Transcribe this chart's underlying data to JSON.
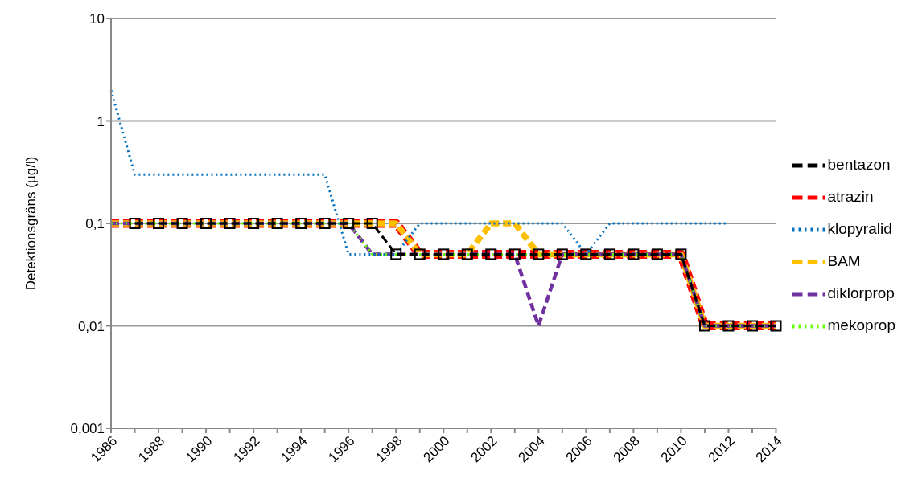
{
  "chart_data": {
    "type": "line",
    "ylabel": "Detektionsgräns (µg/l)",
    "categories": [
      "1986",
      null,
      "1988",
      null,
      "1990",
      null,
      "1992",
      null,
      "1994",
      null,
      "1996",
      null,
      "1998",
      null,
      "2000",
      null,
      "2002",
      null,
      "2004",
      null,
      "2006",
      null,
      "2008",
      null,
      "2010",
      null,
      "2012",
      null,
      "2014"
    ],
    "log": "y",
    "ylim": [
      0.001,
      10
    ],
    "yticks": [
      {
        "value": 0.001,
        "label": "0,001"
      },
      {
        "value": 0.01,
        "label": "0,01"
      },
      {
        "value": 0.1,
        "label": "0,1"
      },
      {
        "value": 1,
        "label": "1"
      },
      {
        "value": 10,
        "label": "10"
      }
    ],
    "grid": "y",
    "legend": "right",
    "series": [
      {
        "name": "bentazon",
        "color": "#000000",
        "line_style": "dashed",
        "marker": "square",
        "values": [
          null,
          0.1,
          0.1,
          0.1,
          0.1,
          0.1,
          0.1,
          0.1,
          0.1,
          0.1,
          0.1,
          0.1,
          0.05,
          0.05,
          0.05,
          0.05,
          0.05,
          0.05,
          0.05,
          0.05,
          0.05,
          0.05,
          0.05,
          0.05,
          0.05,
          0.01,
          0.01,
          0.01,
          0.01
        ]
      },
      {
        "name": "atrazin",
        "color": "#ff0000",
        "line_style": "dashed",
        "values": [
          0.1,
          0.1,
          0.1,
          0.1,
          0.1,
          0.1,
          0.1,
          0.1,
          0.1,
          0.1,
          0.1,
          0.1,
          0.1,
          0.05,
          0.05,
          0.05,
          0.05,
          0.05,
          0.05,
          0.05,
          0.05,
          0.05,
          0.05,
          0.05,
          0.05,
          0.01,
          0.01,
          0.01,
          0.01
        ]
      },
      {
        "name": "klopyralid",
        "color": "#0070c0",
        "line_style": "dotted",
        "values": [
          2,
          0.3,
          0.3,
          0.3,
          0.3,
          0.3,
          0.3,
          0.3,
          0.3,
          0.3,
          0.05,
          0.05,
          0.05,
          0.1,
          0.1,
          0.1,
          0.1,
          0.1,
          0.1,
          0.1,
          0.05,
          0.1,
          0.1,
          0.1,
          0.1,
          0.1,
          0.1,
          null,
          null
        ]
      },
      {
        "name": "BAM",
        "color": "#ffc000",
        "line_style": "dashed",
        "values": [
          0.1,
          0.1,
          0.1,
          0.1,
          0.1,
          0.1,
          0.1,
          0.1,
          0.1,
          0.1,
          0.1,
          0.1,
          0.1,
          0.05,
          0.05,
          0.05,
          0.1,
          0.1,
          0.05,
          0.05,
          0.05,
          0.05,
          0.05,
          0.05,
          0.05,
          0.01,
          0.01,
          0.01,
          0.01
        ]
      },
      {
        "name": "diklorprop",
        "color": "#7030a0",
        "line_style": "dashed",
        "values": [
          0.1,
          0.1,
          0.1,
          0.1,
          0.1,
          0.1,
          0.1,
          0.1,
          0.1,
          0.1,
          0.1,
          0.05,
          0.05,
          0.05,
          0.05,
          0.05,
          0.05,
          0.05,
          0.01,
          0.05,
          0.05,
          0.05,
          0.05,
          0.05,
          0.05,
          0.01,
          0.01,
          0.01,
          0.01
        ]
      },
      {
        "name": "mekoprop",
        "color": "#66ff00",
        "line_style": "dotted",
        "values": [
          0.1,
          0.1,
          0.1,
          0.1,
          0.1,
          0.1,
          0.1,
          0.1,
          0.1,
          0.1,
          0.1,
          0.05,
          0.05,
          0.05,
          0.05,
          0.05,
          0.05,
          0.05,
          0.05,
          0.05,
          0.05,
          0.05,
          0.05,
          0.05,
          0.05,
          0.01,
          0.01,
          0.01,
          0.01
        ]
      }
    ]
  }
}
